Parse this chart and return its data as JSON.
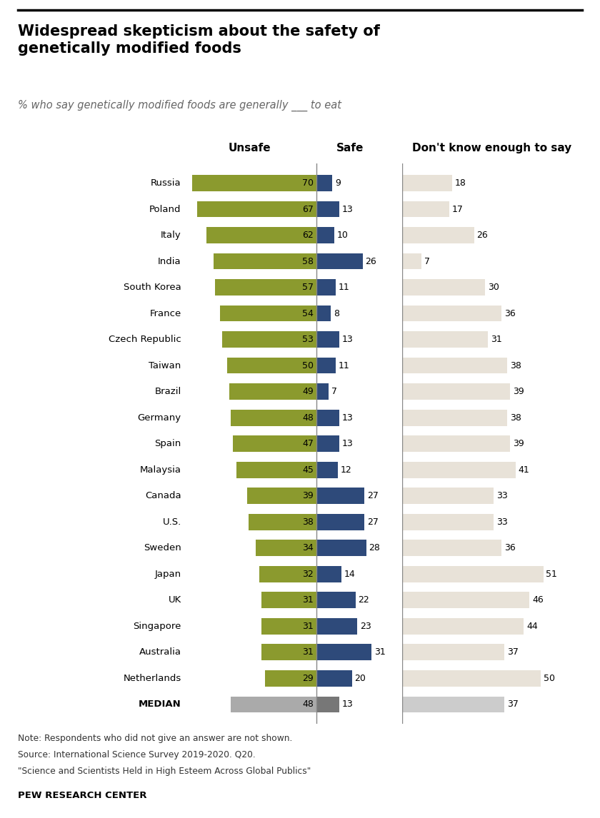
{
  "title": "Widespread skepticism about the safety of\ngenetically modified foods",
  "subtitle": "% who say genetically modified foods are generally ___ to eat",
  "countries": [
    "Russia",
    "Poland",
    "Italy",
    "India",
    "South Korea",
    "France",
    "Czech Republic",
    "Taiwan",
    "Brazil",
    "Germany",
    "Spain",
    "Malaysia",
    "Canada",
    "U.S.",
    "Sweden",
    "Japan",
    "UK",
    "Singapore",
    "Australia",
    "Netherlands",
    "MEDIAN"
  ],
  "unsafe": [
    70,
    67,
    62,
    58,
    57,
    54,
    53,
    50,
    49,
    48,
    47,
    45,
    39,
    38,
    34,
    32,
    31,
    31,
    31,
    29,
    48
  ],
  "safe": [
    9,
    13,
    10,
    26,
    11,
    8,
    13,
    11,
    7,
    13,
    13,
    12,
    27,
    27,
    28,
    14,
    22,
    23,
    31,
    20,
    13
  ],
  "dontknow": [
    18,
    17,
    26,
    7,
    30,
    36,
    31,
    38,
    39,
    38,
    39,
    41,
    33,
    33,
    36,
    51,
    46,
    44,
    37,
    50,
    37
  ],
  "unsafe_color": "#8b9a2e",
  "safe_color": "#2e4a7a",
  "dontknow_color": "#e8e2d8",
  "median_unsafe_color": "#aaaaaa",
  "median_safe_color": "#777777",
  "median_dontknow_color": "#cccccc",
  "divider_color": "#888888",
  "note_line1": "Note: Respondents who did not give an answer are not shown.",
  "note_line2": "Source: International Science Survey 2019-2020. Q20.",
  "note_line3": "\"Science and Scientists Held in High Esteem Across Global Publics\"",
  "source_label": "PEW RESEARCH CENTER",
  "col_header_unsafe": "Unsafe",
  "col_header_safe": "Safe",
  "col_header_dontknow": "Don't know enough to say",
  "bg_color": "#ffffff"
}
